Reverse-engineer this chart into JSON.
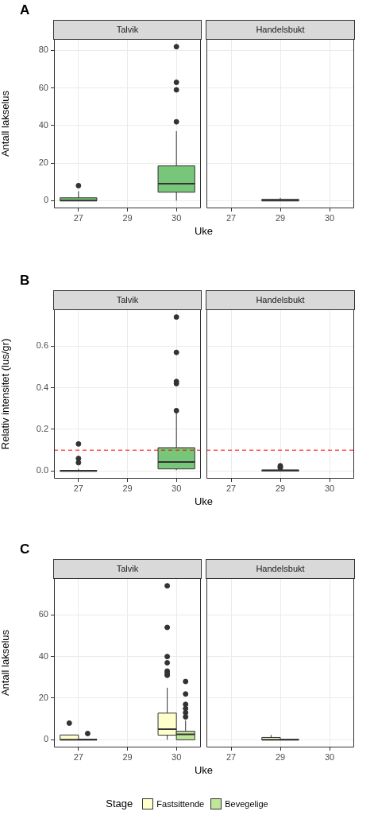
{
  "chart_data": [
    {
      "type": "box",
      "title": "A",
      "subtitle": "Talvik",
      "xlabel": "Uke",
      "ylabel": "Antall lakselus",
      "categories": [
        "27",
        "29",
        "30"
      ],
      "ylim": [
        -4.1,
        86.1
      ],
      "yticks": [
        0,
        20,
        40,
        60,
        80
      ],
      "grid": true,
      "series": [
        {
          "color": "#78c679",
          "boxes": [
            {
              "low": 0,
              "q1": 0,
              "median": 0,
              "q3": 1.5,
              "high": 5,
              "outliers": [
                8
              ]
            },
            null,
            {
              "low": 0,
              "q1": 4.5,
              "median": 9,
              "q3": 18.5,
              "high": 37,
              "outliers": [
                42,
                59,
                63,
                82
              ]
            }
          ]
        }
      ]
    },
    {
      "type": "box",
      "subtitle": "Handelsbukt",
      "categories": [
        "27",
        "29",
        "30"
      ],
      "ylim": [
        -4.1,
        86.1
      ],
      "yticks": [
        0,
        20,
        40,
        60,
        80
      ],
      "grid": true,
      "tick_labels": "x",
      "series": [
        {
          "color": "#78c679",
          "boxes": [
            null,
            {
              "low": 0,
              "q1": 0,
              "median": 0,
              "q3": 0.7,
              "high": 1.5
            },
            null
          ]
        }
      ]
    },
    {
      "type": "box",
      "title": "B",
      "subtitle": "Talvik",
      "xlabel": "Uke",
      "ylabel": "Relativ intensitet (lus/gr)",
      "categories": [
        "27",
        "29",
        "30"
      ],
      "ylim": [
        -0.037,
        0.777
      ],
      "yticks": [
        {
          "value": 0,
          "label": "0.0"
        },
        0.2,
        0.4,
        0.6
      ],
      "grid": true,
      "ref_lines": [
        {
          "axis": "y",
          "value": 0.1,
          "color": "#ff0000",
          "line_style": "dashed"
        }
      ],
      "series": [
        {
          "color": "#78c679",
          "boxes": [
            {
              "low": 0,
              "q1": 0,
              "median": 0,
              "q3": 0.003,
              "high": 0.01,
              "outliers": [
                0.04,
                0.06,
                0.13
              ]
            },
            null,
            {
              "low": 0.004,
              "q1": 0.01,
              "median": 0.043,
              "q3": 0.112,
              "high": 0.28,
              "outliers": [
                0.29,
                0.42,
                0.43,
                0.57,
                0.74
              ]
            }
          ]
        }
      ]
    },
    {
      "type": "box",
      "subtitle": "Handelsbukt",
      "categories": [
        "27",
        "29",
        "30"
      ],
      "ylim": [
        -0.037,
        0.777
      ],
      "yticks": [
        0,
        0.2,
        0.4,
        0.6
      ],
      "grid": true,
      "tick_labels": "x",
      "ref_lines": [
        {
          "axis": "y",
          "value": 0.1,
          "color": "#ff0000",
          "line_style": "dashed"
        }
      ],
      "series": [
        {
          "color": "#78c679",
          "boxes": [
            null,
            {
              "low": 0,
              "q1": 0,
              "median": 0.003,
              "q3": 0.004,
              "high": 0.01,
              "outliers": [
                0.015,
                0.02,
                0.025
              ]
            },
            null
          ]
        }
      ]
    },
    {
      "type": "box",
      "title": "C",
      "subtitle": "Talvik",
      "xlabel": "Uke",
      "ylabel": "Antall lakselus",
      "categories": [
        "27",
        "29",
        "30"
      ],
      "ylim": [
        -3.7,
        77.7
      ],
      "yticks": [
        0,
        20,
        40,
        60
      ],
      "grid": true,
      "legend": "bottom",
      "legend_title": "Stage",
      "series": [
        {
          "name": "Fastsittende",
          "color": "#ffffcc",
          "boxes": [
            {
              "low": 0,
              "q1": 0,
              "median": 0,
              "q3": 2.3,
              "high": 2.3,
              "outliers": [
                8
              ]
            },
            null,
            {
              "low": 0,
              "q1": 2.2,
              "median": 5.1,
              "q3": 12.8,
              "high": 25,
              "outliers": [
                31,
                32,
                33,
                37,
                40,
                54,
                74
              ]
            }
          ]
        },
        {
          "name": "Bevegelige",
          "color": "#c2e699",
          "boxes": [
            {
              "low": 0,
              "q1": 0,
              "median": 0,
              "q3": 0.3,
              "high": 0.3,
              "outliers": [
                3
              ]
            },
            null,
            {
              "low": 0,
              "q1": 0,
              "median": 2.6,
              "q3": 4.1,
              "high": 9.3,
              "outliers": [
                11,
                13,
                15,
                17,
                22,
                28
              ]
            }
          ]
        }
      ]
    },
    {
      "type": "box",
      "subtitle": "Handelsbukt",
      "categories": [
        "27",
        "29",
        "30"
      ],
      "ylim": [
        -3.7,
        77.7
      ],
      "yticks": [
        0,
        20,
        40,
        60
      ],
      "grid": true,
      "tick_labels": "x",
      "series": [
        {
          "color": "#ffffcc",
          "boxes": [
            null,
            {
              "low": 0,
              "q1": 0,
              "median": 0,
              "q3": 1.1,
              "high": 2.3
            },
            null
          ]
        },
        {
          "color": "#c2e699",
          "boxes": [
            null,
            {
              "low": 0,
              "q1": 0,
              "median": 0,
              "q3": 0.2,
              "high": 0.2
            },
            null
          ]
        }
      ]
    }
  ]
}
